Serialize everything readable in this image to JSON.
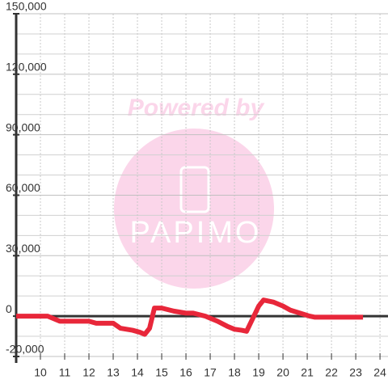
{
  "chart_data": {
    "type": "line",
    "watermark": {
      "line1": "Powered by",
      "line2": "PAPIMO"
    },
    "x": [
      9,
      10.3,
      10.8,
      11.5,
      12,
      12.3,
      13,
      13.3,
      13.8,
      14.1,
      14.3,
      14.5,
      14.7,
      15,
      15.5,
      16,
      16.3,
      16.8,
      17.3,
      17.7,
      18,
      18.3,
      18.5,
      18.8,
      19,
      19.2,
      19.6,
      20,
      20.3,
      20.7,
      21.1,
      21.3,
      22,
      23.3
    ],
    "series": [
      {
        "color": "#e8273a",
        "values": [
          0,
          0,
          -2500,
          -2500,
          -2500,
          -3500,
          -3500,
          -6000,
          -7000,
          -8000,
          -9000,
          -6000,
          4000,
          4000,
          2500,
          1500,
          1500,
          0,
          -2500,
          -5000,
          -6500,
          -7000,
          -7500,
          0,
          5000,
          8000,
          7000,
          5000,
          3000,
          1500,
          0,
          -500,
          -500,
          -500
        ]
      }
    ],
    "xlim": [
      9,
      24.33
    ],
    "xticks": [
      10,
      11,
      12,
      13,
      14,
      15,
      16,
      17,
      18,
      19,
      20,
      21,
      22,
      23,
      24
    ],
    "ylim": [
      -20000,
      150000
    ],
    "yticks": [
      {
        "value": -20000,
        "label": "-20,000"
      },
      0,
      {
        "value": 30000,
        "label": "30,000"
      },
      {
        "value": 60000,
        "label": "60,000"
      },
      {
        "value": 90000,
        "label": "90,000"
      },
      {
        "value": 120000,
        "label": "120,000"
      },
      {
        "value": 150000,
        "label": "150,000"
      }
    ],
    "yminorticks": [
      -10000,
      10000,
      20000,
      40000,
      50000,
      70000,
      80000,
      100000,
      110000,
      130000,
      140000
    ],
    "grid": true
  }
}
